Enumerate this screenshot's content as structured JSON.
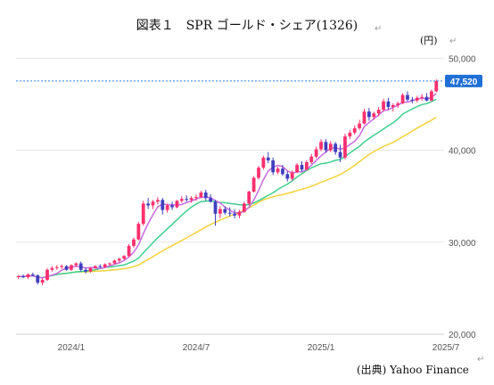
{
  "chart_data": {
    "type": "candlestick",
    "title": "図表１　SPR ゴールド・シェア(1326)",
    "unit": "(円)",
    "source": "(出典) Yahoo Finance",
    "x_ticks": [
      "2024/1",
      "2024/7",
      "2025/1",
      "2025/7"
    ],
    "y_ticks": [
      "20,000",
      "30,000",
      "40,000",
      "50,000"
    ],
    "ylim": [
      20000,
      51000
    ],
    "current_price_label": "47,520",
    "current_price": 47520,
    "grid": true,
    "colors": {
      "up": "#ff2f6e",
      "down": "#3f3fbf",
      "ma_short": "#c86be0",
      "ma_mid": "#3ecf8e",
      "ma_long": "#f2d23a",
      "price_line": "#2f7fe0",
      "grid": "#e6e6e6"
    },
    "weeks_start_offset": 0,
    "candles": [
      [
        26200,
        26400,
        26000,
        26300
      ],
      [
        26300,
        26500,
        26100,
        26200
      ],
      [
        26200,
        26600,
        26000,
        26500
      ],
      [
        26500,
        26700,
        26300,
        26400
      ],
      [
        26400,
        26500,
        25400,
        25600
      ],
      [
        25600,
        26100,
        25300,
        25900
      ],
      [
        25900,
        27200,
        25800,
        27000
      ],
      [
        27000,
        27400,
        26800,
        27200
      ],
      [
        27200,
        27500,
        27000,
        27300
      ],
      [
        27300,
        27600,
        27100,
        27400
      ],
      [
        27400,
        27500,
        26900,
        27000
      ],
      [
        27000,
        27600,
        26900,
        27500
      ],
      [
        27500,
        27800,
        27300,
        27700
      ],
      [
        27700,
        27900,
        26800,
        27000
      ],
      [
        27000,
        27200,
        26600,
        26800
      ],
      [
        26800,
        27300,
        26700,
        27200
      ],
      [
        27200,
        27500,
        27100,
        27400
      ],
      [
        27400,
        27600,
        27200,
        27300
      ],
      [
        27300,
        27700,
        27200,
        27600
      ],
      [
        27600,
        27800,
        27400,
        27700
      ],
      [
        27700,
        28100,
        27600,
        28000
      ],
      [
        28000,
        28300,
        27800,
        28200
      ],
      [
        28200,
        28600,
        28100,
        28500
      ],
      [
        28500,
        29800,
        28400,
        29600
      ],
      [
        29600,
        30500,
        29400,
        30300
      ],
      [
        30300,
        32200,
        30200,
        32000
      ],
      [
        32000,
        34500,
        31800,
        34200
      ],
      [
        34200,
        34800,
        33600,
        34000
      ],
      [
        34000,
        34600,
        33600,
        34400
      ],
      [
        34400,
        34900,
        34100,
        34600
      ],
      [
        34600,
        34800,
        33000,
        33500
      ],
      [
        33500,
        34200,
        33200,
        34000
      ],
      [
        34000,
        34400,
        33500,
        33800
      ],
      [
        33800,
        34600,
        33700,
        34500
      ],
      [
        34500,
        35000,
        34300,
        34700
      ],
      [
        34700,
        35100,
        34400,
        34600
      ],
      [
        34600,
        35000,
        34300,
        34800
      ],
      [
        34800,
        35200,
        34500,
        34900
      ],
      [
        34900,
        35600,
        34800,
        35400
      ],
      [
        35400,
        35700,
        34500,
        34800
      ],
      [
        34800,
        35200,
        34300,
        34400
      ],
      [
        34400,
        34600,
        31800,
        33100
      ],
      [
        33100,
        33900,
        32600,
        33600
      ],
      [
        33600,
        33900,
        33000,
        33200
      ],
      [
        33200,
        33800,
        32800,
        33100
      ],
      [
        33100,
        33600,
        32600,
        32900
      ],
      [
        32900,
        33500,
        32600,
        33300
      ],
      [
        33300,
        34400,
        33200,
        34200
      ],
      [
        34200,
        35600,
        34000,
        35500
      ],
      [
        35500,
        37200,
        35400,
        37000
      ],
      [
        37000,
        38300,
        36800,
        38100
      ],
      [
        38100,
        39400,
        37900,
        39200
      ],
      [
        39200,
        39800,
        38600,
        38900
      ],
      [
        38900,
        39200,
        37300,
        37600
      ],
      [
        37600,
        38200,
        37400,
        38000
      ],
      [
        38000,
        38400,
        37200,
        37400
      ],
      [
        37400,
        37700,
        36600,
        36900
      ],
      [
        36900,
        37800,
        36700,
        37600
      ],
      [
        37600,
        38600,
        37500,
        38400
      ],
      [
        38400,
        38800,
        37700,
        37900
      ],
      [
        37900,
        38900,
        37800,
        38700
      ],
      [
        38700,
        39600,
        38500,
        39300
      ],
      [
        39300,
        40400,
        39100,
        40100
      ],
      [
        40100,
        41200,
        39900,
        40900
      ],
      [
        40900,
        41200,
        39700,
        40000
      ],
      [
        40000,
        41000,
        39800,
        40700
      ],
      [
        40700,
        40900,
        39500,
        39800
      ],
      [
        39800,
        40600,
        38700,
        39200
      ],
      [
        39200,
        41800,
        39000,
        41500
      ],
      [
        41500,
        42200,
        41200,
        41900
      ],
      [
        41900,
        42700,
        41700,
        42400
      ],
      [
        42400,
        43300,
        42200,
        42900
      ],
      [
        42900,
        44500,
        42800,
        44200
      ],
      [
        44200,
        44600,
        43200,
        43600
      ],
      [
        43600,
        44200,
        43300,
        44000
      ],
      [
        44000,
        44700,
        43700,
        44400
      ],
      [
        44400,
        45600,
        44200,
        45300
      ],
      [
        45300,
        45700,
        44400,
        44700
      ],
      [
        44700,
        45100,
        44200,
        44900
      ],
      [
        44900,
        45300,
        44600,
        45100
      ],
      [
        45100,
        46200,
        45000,
        46000
      ],
      [
        46000,
        46400,
        45300,
        45500
      ],
      [
        45500,
        45800,
        45100,
        45400
      ],
      [
        45400,
        45900,
        45200,
        45700
      ],
      [
        45700,
        46100,
        45400,
        45800
      ],
      [
        45800,
        46200,
        45300,
        45400
      ],
      [
        45400,
        46600,
        45300,
        46400
      ],
      [
        46400,
        47700,
        46300,
        47520
      ]
    ]
  }
}
